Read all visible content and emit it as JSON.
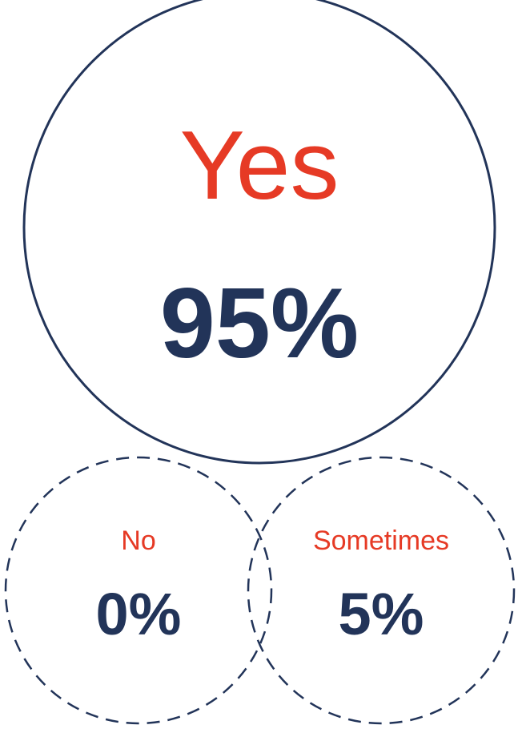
{
  "colors": {
    "label": "#e63a25",
    "value": "#223459",
    "outline": "#223459",
    "background": "#ffffff"
  },
  "chart_data": {
    "type": "bubble",
    "unit": "%",
    "items": [
      {
        "label": "Yes",
        "value": 95,
        "display": "95%",
        "outline": "solid"
      },
      {
        "label": "No",
        "value": 0,
        "display": "0%",
        "outline": "dashed"
      },
      {
        "label": "Sometimes",
        "value": 5,
        "display": "5%",
        "outline": "dashed"
      }
    ]
  }
}
